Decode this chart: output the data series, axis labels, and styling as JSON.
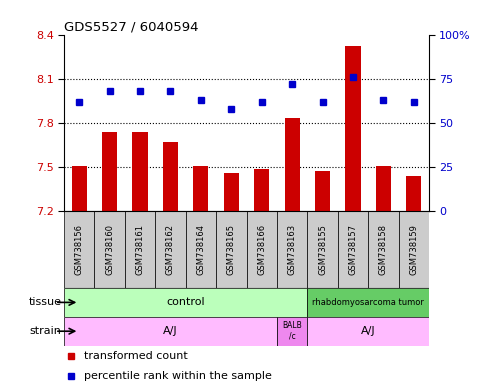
{
  "title": "GDS5527 / 6040594",
  "samples": [
    "GSM738156",
    "GSM738160",
    "GSM738161",
    "GSM738162",
    "GSM738164",
    "GSM738165",
    "GSM738166",
    "GSM738163",
    "GSM738155",
    "GSM738157",
    "GSM738158",
    "GSM738159"
  ],
  "bar_values": [
    7.51,
    7.74,
    7.74,
    7.67,
    7.51,
    7.46,
    7.49,
    7.83,
    7.47,
    8.32,
    7.51,
    7.44
  ],
  "dot_values": [
    62,
    68,
    68,
    68,
    63,
    58,
    62,
    72,
    62,
    76,
    63,
    62
  ],
  "ylim_left": [
    7.2,
    8.4
  ],
  "ylim_right": [
    0,
    100
  ],
  "yticks_left": [
    7.2,
    7.5,
    7.8,
    8.1,
    8.4
  ],
  "yticks_right": [
    0,
    25,
    50,
    75,
    100
  ],
  "hlines": [
    7.5,
    7.8,
    8.1
  ],
  "bar_color": "#cc0000",
  "dot_color": "#0000cc",
  "bar_ybase": 7.2,
  "tick_label_color_left": "#cc0000",
  "tick_label_color_right": "#0000cc",
  "tissue_control_color": "#bbffbb",
  "tissue_tumor_color": "#66cc66",
  "strain_aj_color": "#ffbbff",
  "strain_balb_color": "#ee88ee",
  "legend_items": [
    {
      "color": "#cc0000",
      "label": "transformed count"
    },
    {
      "color": "#0000cc",
      "label": "percentile rank within the sample"
    }
  ]
}
